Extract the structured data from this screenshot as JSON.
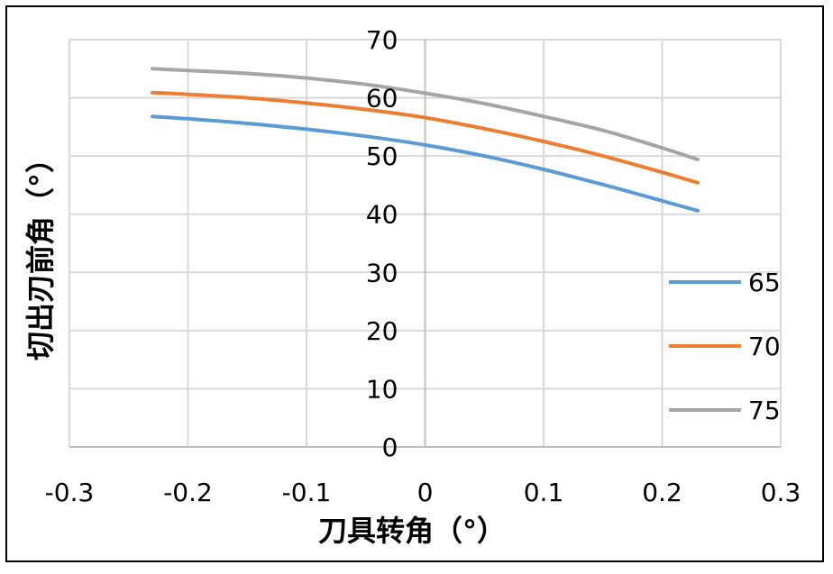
{
  "chart_data": {
    "type": "line",
    "title": "",
    "xlabel": "刀具转角（°）",
    "ylabel": "切出刃前角（°）",
    "xlim": [
      -0.3,
      0.3
    ],
    "ylim": [
      0,
      70
    ],
    "xticks": [
      "-0.3",
      "-0.2",
      "-0.1",
      "0",
      "0.1",
      "0.2",
      "0.3"
    ],
    "yticks": [
      "0",
      "10",
      "20",
      "30",
      "40",
      "50",
      "60",
      "70"
    ],
    "grid": true,
    "legend_position": "right",
    "series": [
      {
        "name": "65",
        "color": "#5b9bd5",
        "x": [
          -0.23,
          -0.2,
          -0.15,
          -0.1,
          -0.05,
          0,
          0.05,
          0.1,
          0.15,
          0.2,
          0.23
        ],
        "y": [
          56.8,
          56.4,
          55.6,
          54.6,
          53.4,
          51.9,
          50.0,
          47.7,
          45.1,
          42.3,
          40.6
        ]
      },
      {
        "name": "70",
        "color": "#ed7d31",
        "x": [
          -0.23,
          -0.2,
          -0.15,
          -0.1,
          -0.05,
          0,
          0.05,
          0.1,
          0.15,
          0.2,
          0.23
        ],
        "y": [
          60.9,
          60.6,
          60.0,
          59.1,
          58.0,
          56.6,
          54.7,
          52.5,
          50.0,
          47.2,
          45.4
        ]
      },
      {
        "name": "75",
        "color": "#a5a5a5",
        "x": [
          -0.23,
          -0.2,
          -0.15,
          -0.1,
          -0.05,
          0,
          0.05,
          0.1,
          0.15,
          0.2,
          0.23
        ],
        "y": [
          65.0,
          64.7,
          64.2,
          63.4,
          62.3,
          60.8,
          59.0,
          56.8,
          54.4,
          51.4,
          49.4
        ]
      }
    ]
  }
}
